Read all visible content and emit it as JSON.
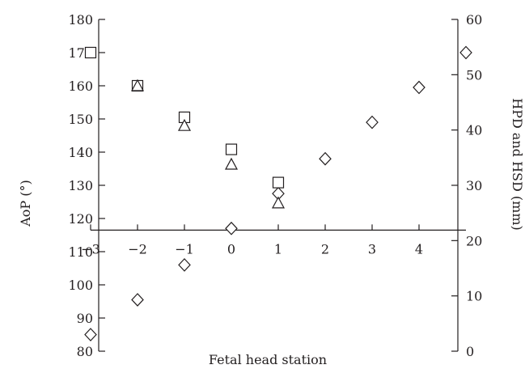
{
  "chart_data": {
    "type": "scatter",
    "title": "",
    "xlabel": "Fetal head station",
    "ylabel_left": "AoP (°)",
    "ylabel_right": "HPD and HSD (mm)",
    "x_ticks": [
      "−3",
      "−2",
      "−1",
      "0",
      "1",
      "2",
      "3",
      "4"
    ],
    "x_tick_values": [
      -3,
      -2,
      -1,
      0,
      1,
      2,
      3,
      4
    ],
    "xlim": [
      -3,
      5
    ],
    "y_left_ticks": [
      "80",
      "90",
      "100",
      "110",
      "120",
      "130",
      "140",
      "150",
      "160",
      "170",
      "180"
    ],
    "y_left_tick_values": [
      80,
      90,
      100,
      110,
      120,
      130,
      140,
      150,
      160,
      170,
      180
    ],
    "y_left_lim": [
      80,
      180
    ],
    "y_right_ticks": [
      "0",
      "10",
      "20",
      "30",
      "40",
      "50",
      "60"
    ],
    "y_right_tick_values": [
      0,
      10,
      20,
      30,
      40,
      50,
      60
    ],
    "y_right_lim": [
      0,
      60
    ],
    "x_axis_crosses_left_y": 116.5,
    "grid": false,
    "legend": "none",
    "series": [
      {
        "marker": "diamond",
        "axis": "left",
        "x": [
          -3,
          -2,
          -1,
          0,
          1,
          2,
          3,
          4,
          5
        ],
        "y": [
          85,
          95.5,
          106,
          117,
          127.5,
          138,
          149,
          159.5,
          170
        ]
      },
      {
        "marker": "square",
        "axis": "right",
        "x": [
          -3,
          -2,
          -1,
          0,
          1
        ],
        "y": [
          54,
          48,
          42.3,
          36.5,
          30.5
        ]
      },
      {
        "marker": "triangle",
        "axis": "right",
        "x": [
          -2,
          -1,
          0,
          1
        ],
        "y": [
          48,
          40.8,
          33.8,
          26.8
        ]
      }
    ]
  }
}
